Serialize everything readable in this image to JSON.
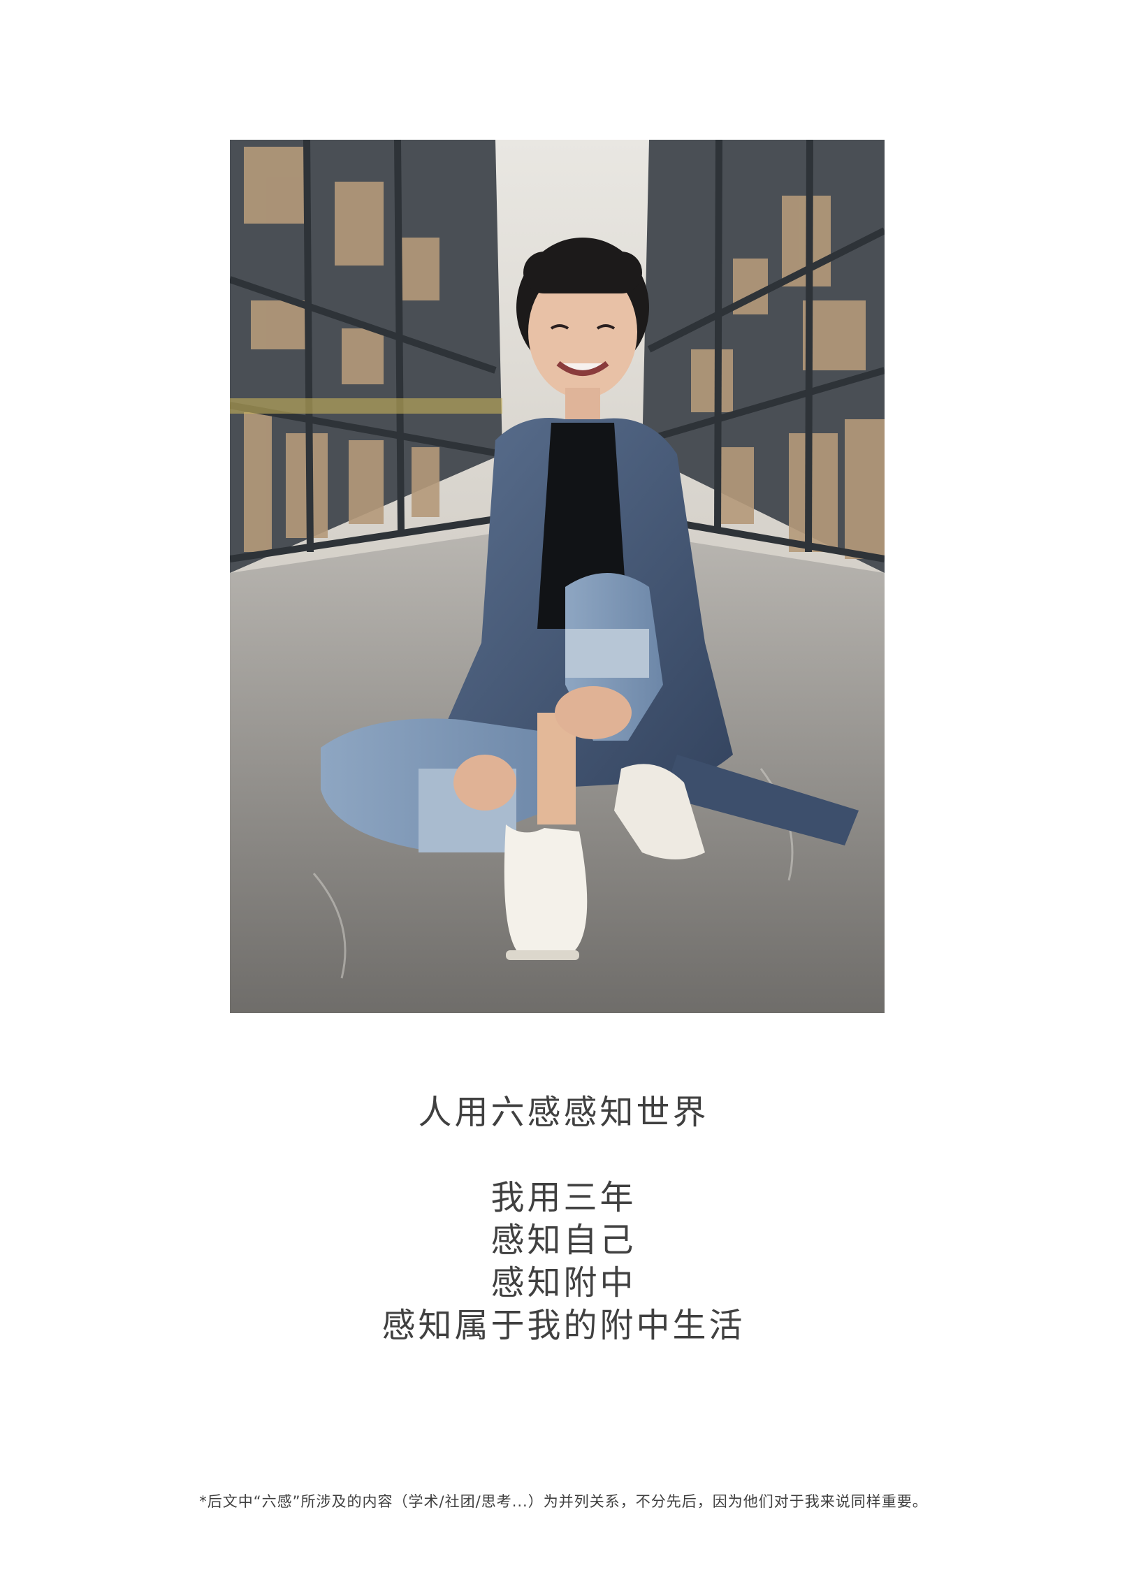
{
  "photo": {
    "icon": "portrait-photo"
  },
  "headline": "人用六感感知世界",
  "verse": [
    "我用三年",
    "感知自己",
    "感知附中",
    "感知属于我的附中生活"
  ],
  "footnote": "*后文中“六感”所涉及的内容（学术/社团/思考...）为并列关系，不分先后，因为他们对于我来说同样重要。"
}
